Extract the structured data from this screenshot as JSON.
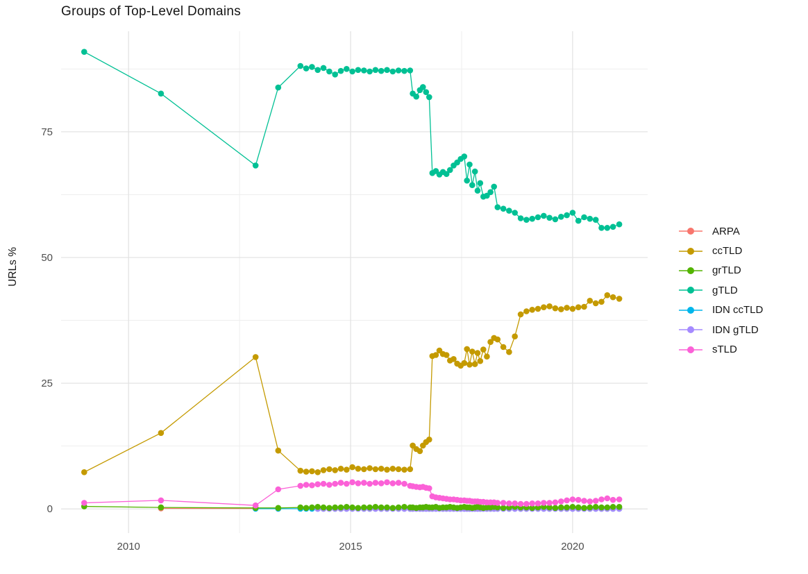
{
  "page": {
    "background": "#ffffff"
  },
  "title": "Groups of Top-Level Domains",
  "y_axis_label": "URLs %",
  "legend": {
    "position": "right",
    "items": [
      {
        "label": "ARPA",
        "color": "#F8766D"
      },
      {
        "label": "ccTLD",
        "color": "#C49A00"
      },
      {
        "label": "grTLD",
        "color": "#53B400"
      },
      {
        "label": "gTLD",
        "color": "#00C094"
      },
      {
        "label": "IDN ccTLD",
        "color": "#00B6EB"
      },
      {
        "label": "IDN gTLD",
        "color": "#A58AFF"
      },
      {
        "label": "sTLD",
        "color": "#FB61D7"
      }
    ]
  },
  "chart_data": {
    "type": "line",
    "marker": "circle",
    "title": "Groups of Top-Level Domains",
    "xlabel": "",
    "ylabel": "URLs %",
    "grid": "on",
    "legend_position": "right",
    "x_ticks": [
      2010,
      2015,
      2020
    ],
    "x_minor_ticks": [
      2012.5,
      2017.5
    ],
    "y_ticks": [
      0,
      25,
      50,
      75
    ],
    "y_minor_ticks": [
      12.5,
      37.5,
      62.5,
      87.5
    ],
    "x_range": [
      2008.48,
      2021.69
    ],
    "y_range": [
      -4.8,
      95.0
    ],
    "x": [
      2009.0,
      2010.73,
      2012.86,
      2013.37,
      2013.87,
      2014.0,
      2014.13,
      2014.26,
      2014.39,
      2014.52,
      2014.65,
      2014.78,
      2014.91,
      2015.04,
      2015.17,
      2015.3,
      2015.43,
      2015.56,
      2015.69,
      2015.82,
      2015.95,
      2016.08,
      2016.21,
      2016.34,
      2016.4,
      2016.48,
      2016.56,
      2016.63,
      2016.7,
      2016.77,
      2016.84,
      2016.92,
      2017.0,
      2017.08,
      2017.16,
      2017.24,
      2017.32,
      2017.4,
      2017.48,
      2017.56,
      2017.62,
      2017.68,
      2017.74,
      2017.8,
      2017.86,
      2017.92,
      2017.99,
      2018.07,
      2018.15,
      2018.23,
      2018.31,
      2018.44,
      2018.57,
      2018.7,
      2018.83,
      2018.96,
      2019.09,
      2019.22,
      2019.35,
      2019.48,
      2019.61,
      2019.74,
      2019.87,
      2020.0,
      2020.13,
      2020.26,
      2020.39,
      2020.52,
      2020.65,
      2020.78,
      2020.91,
      2021.05
    ],
    "series": [
      {
        "name": "ARPA",
        "color": "#F8766D",
        "offset": 1,
        "values": [
          0.1,
          0.08,
          0.05
        ]
      },
      {
        "name": "IDN ccTLD",
        "color": "#00B6EB",
        "offset": 2,
        "values": [
          0.05,
          0.05,
          0.05,
          0.05,
          0.05,
          0.05,
          0.05,
          0.05,
          0.05,
          0.05,
          0.05,
          0.05,
          0.05,
          0.05,
          0.05,
          0.05,
          0.05,
          0.05,
          0.05,
          0.05,
          0.05,
          0.05,
          0.05,
          0.05,
          0.05,
          0.05,
          0.05,
          0.05,
          0.05,
          0.05,
          0.05,
          0.05,
          0.05,
          0.05,
          0.05,
          0.05,
          0.05,
          0.05,
          0.05,
          0.05,
          0.05,
          0.05,
          0.05,
          0.05,
          0.05,
          0.05,
          0.05,
          0.05,
          0.05,
          0.05,
          0.05,
          0.05,
          0.05,
          0.05,
          0.05,
          0.05,
          0.05,
          0.05,
          0.05,
          0.05,
          0.05,
          0.05,
          0.05,
          0.05,
          0.05,
          0.05,
          0.05,
          0.05,
          0.05,
          0.05
        ]
      },
      {
        "name": "IDN gTLD",
        "color": "#A58AFF",
        "offset": 7,
        "values": [
          0.02,
          0.02,
          0.02,
          0.02,
          0.02,
          0.02,
          0.02,
          0.02,
          0.02,
          0.02,
          0.02,
          0.02,
          0.02,
          0.02,
          0.02,
          0.02,
          0.02,
          0.02,
          0.02,
          0.02,
          0.02,
          0.02,
          0.02,
          0.02,
          0.02,
          0.02,
          0.02,
          0.02,
          0.02,
          0.02,
          0.02,
          0.02,
          0.02,
          0.02,
          0.02,
          0.02,
          0.02,
          0.02,
          0.02,
          0.02,
          0.02,
          0.02,
          0.02,
          0.02,
          0.02,
          0.02,
          0.02,
          0.02,
          0.02,
          0.02,
          0.02,
          0.02,
          0.02,
          0.02,
          0.02,
          0.02,
          0.02,
          0.02,
          0.02,
          0.02,
          0.02,
          0.02,
          0.02,
          0.02,
          0.02
        ]
      },
      {
        "name": "ccTLD",
        "color": "#C49A00",
        "offset": 0,
        "values": [
          7.3,
          15.1,
          30.2,
          11.6,
          7.6,
          7.4,
          7.5,
          7.3,
          7.7,
          7.9,
          7.7,
          8.0,
          7.8,
          8.3,
          8.0,
          7.9,
          8.1,
          7.9,
          8.0,
          7.8,
          8.0,
          7.9,
          7.8,
          7.9,
          12.6,
          11.9,
          11.5,
          12.6,
          13.3,
          13.8,
          30.4,
          30.6,
          31.5,
          30.8,
          30.6,
          29.5,
          29.8,
          28.9,
          28.5,
          29.0,
          31.8,
          28.7,
          31.3,
          28.8,
          31.0,
          29.4,
          31.7,
          30.3,
          33.2,
          34.0,
          33.7,
          32.2,
          31.2,
          34.3,
          38.7,
          39.3,
          39.6,
          39.8,
          40.1,
          40.3,
          39.9,
          39.7,
          40.0,
          39.8,
          40.1,
          40.2,
          41.4,
          40.9,
          41.2,
          42.5,
          42.1,
          41.8
        ]
      },
      {
        "name": "gTLD",
        "color": "#00C094",
        "offset": 0,
        "values": [
          90.9,
          82.6,
          68.3,
          83.8,
          88.1,
          87.6,
          87.9,
          87.3,
          87.7,
          87.0,
          86.4,
          87.1,
          87.5,
          87.0,
          87.3,
          87.2,
          87.0,
          87.3,
          87.1,
          87.3,
          87.0,
          87.2,
          87.1,
          87.2,
          82.6,
          82.0,
          83.3,
          83.9,
          82.9,
          81.9,
          66.8,
          67.2,
          66.5,
          67.0,
          66.6,
          67.4,
          68.3,
          68.9,
          69.6,
          70.1,
          65.3,
          68.5,
          64.4,
          67.1,
          63.3,
          64.8,
          62.1,
          62.3,
          63.0,
          64.1,
          60.0,
          59.7,
          59.3,
          58.9,
          57.8,
          57.5,
          57.7,
          58.0,
          58.3,
          57.9,
          57.6,
          58.1,
          58.4,
          58.9,
          57.3,
          58.0,
          57.7,
          57.5,
          55.9,
          55.9,
          56.1,
          56.6
        ]
      },
      {
        "name": "grTLD",
        "color": "#53B400",
        "offset": 0,
        "values": [
          0.5,
          0.3,
          0.2,
          0.2,
          0.3,
          0.2,
          0.3,
          0.4,
          0.3,
          0.2,
          0.3,
          0.3,
          0.4,
          0.3,
          0.2,
          0.3,
          0.3,
          0.4,
          0.3,
          0.3,
          0.2,
          0.3,
          0.4,
          0.3,
          0.3,
          0.2,
          0.3,
          0.3,
          0.4,
          0.3,
          0.3,
          0.4,
          0.2,
          0.3,
          0.3,
          0.4,
          0.3,
          0.2,
          0.3,
          0.4,
          0.3,
          0.3,
          0.2,
          0.3,
          0.4,
          0.3,
          0.2,
          0.3,
          0.3,
          0.4,
          0.3,
          0.2,
          0.3,
          0.4,
          0.3,
          0.3,
          0.2,
          0.3,
          0.4,
          0.3,
          0.2,
          0.3,
          0.3,
          0.4,
          0.3,
          0.2,
          0.3,
          0.4,
          0.3,
          0.3,
          0.4,
          0.4
        ]
      },
      {
        "name": "sTLD",
        "color": "#FB61D7",
        "offset": 0,
        "values": [
          1.2,
          1.7,
          0.7,
          3.9,
          4.6,
          4.8,
          4.7,
          4.9,
          5.0,
          4.8,
          5.0,
          5.2,
          5.0,
          5.3,
          5.1,
          5.2,
          5.0,
          5.2,
          5.1,
          5.3,
          5.1,
          5.2,
          5.0,
          4.6,
          4.5,
          4.4,
          4.3,
          4.4,
          4.2,
          4.1,
          2.5,
          2.3,
          2.2,
          2.1,
          2.0,
          1.9,
          1.9,
          1.8,
          1.7,
          1.7,
          1.6,
          1.6,
          1.5,
          1.5,
          1.5,
          1.4,
          1.4,
          1.3,
          1.3,
          1.3,
          1.2,
          1.2,
          1.1,
          1.1,
          1.0,
          1.0,
          1.1,
          1.1,
          1.2,
          1.2,
          1.3,
          1.5,
          1.7,
          1.9,
          1.8,
          1.6,
          1.5,
          1.6,
          1.9,
          2.1,
          1.8,
          1.9
        ]
      }
    ]
  }
}
